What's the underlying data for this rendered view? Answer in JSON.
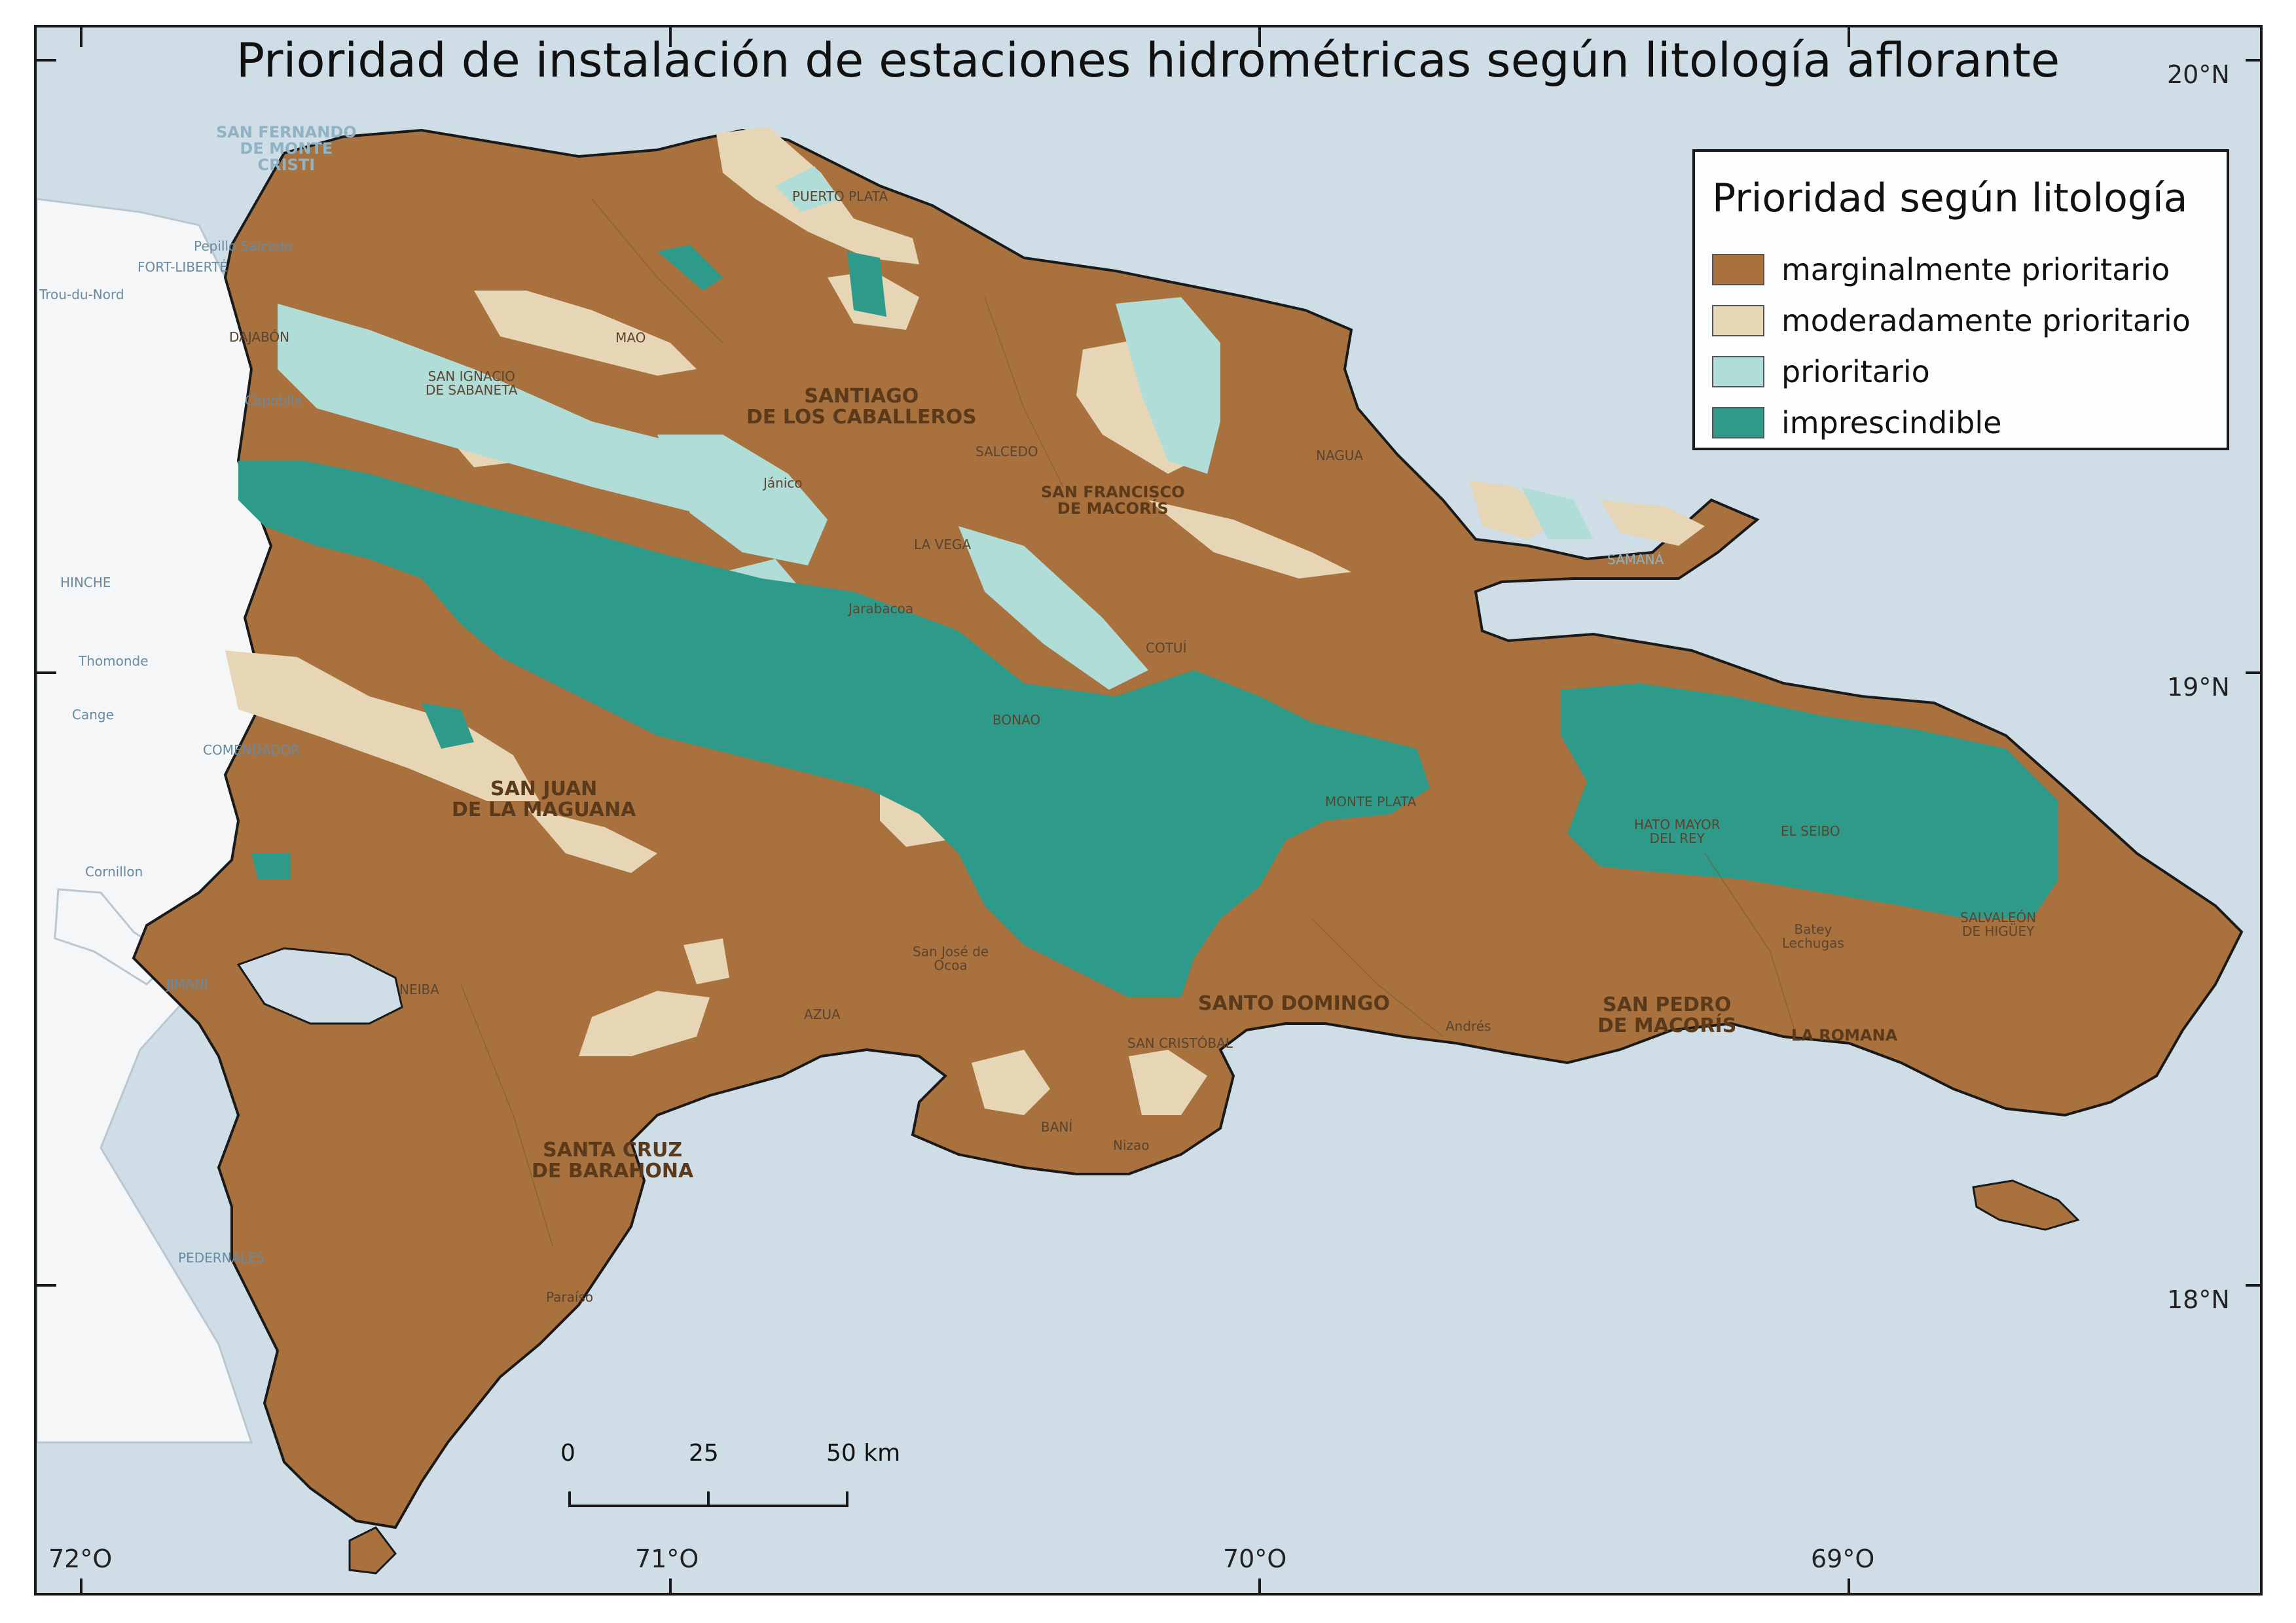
{
  "title": "Prioridad de instalación de estaciones hidrométricas según litología aflorante",
  "legend": {
    "title": "Prioridad según litología",
    "items": [
      {
        "label": "marginalmente prioritario",
        "color": "#a8713d"
      },
      {
        "label": "moderadamente prioritario",
        "color": "#e7d6b5"
      },
      {
        "label": "prioritario",
        "color": "#b1ddd8"
      },
      {
        "label": "imprescindible",
        "color": "#2e9a8a"
      }
    ]
  },
  "colors": {
    "sea": "#cfdee6",
    "haiti": "#f4f6f7",
    "frame": "#1a1a1a"
  },
  "coords": {
    "lat": [
      "20°N",
      "19°N",
      "18°N"
    ],
    "lon": [
      "72°O",
      "71°O",
      "70°O",
      "69°O"
    ]
  },
  "scale": {
    "ticks": [
      "0",
      "25",
      "50 km"
    ]
  },
  "places": {
    "montecristi": "SAN FERNANDO\nDE MONTE\nCRISTI",
    "puerto_plata": "PUERTO PLATA",
    "mao": "MAO",
    "dajabon": "DAJABÓN",
    "sabaneta": "SAN IGNACIO\nDE SABANETA",
    "santiago": "SANTIAGO\nDE LOS CABALLEROS",
    "salcedo": "SALCEDO",
    "sfm": "SAN FRANCISCO\nDE MACORÍS",
    "nagua": "NAGUA",
    "samana": "SAMANÁ",
    "janico": "Jánico",
    "la_vega": "LA VEGA",
    "jarabacoa": "Jarabacoa",
    "cotui": "COTUÍ",
    "bonao": "BONAO",
    "monte_plata": "MONTE PLATA",
    "hato_mayor": "HATO MAYOR\nDEL REY",
    "el_seibo": "EL SEIBO",
    "higuey": "SALVALEÓN\nDE HIGÜEY",
    "batey": "Batey\nLechugas",
    "comendador": "COMENDADOR",
    "san_juan": "SAN JUAN\nDE LA MAGUANA",
    "ocoa": "San José de\nOcoa",
    "santo_domingo": "SANTO DOMINGO",
    "spm": "SAN PEDRO\nDE MACORÍS",
    "la_romana": "LA ROMANA",
    "andres": "Andrés",
    "azua": "AZUA",
    "san_cristobal": "SAN CRISTÓBAL",
    "bani": "BANÍ",
    "nizao": "Nizao",
    "neiba": "NEIBA",
    "barahona": "SANTA CRUZ\nDE BARAHONA",
    "pedernales": "PEDERNALES",
    "paraiso": "Paraíso",
    "jimani": "JIMANÍ",
    "hinche": "HINCHE",
    "thomonde": "Thomonde",
    "cange": "Cange",
    "cornillon": "Cornillon",
    "fort_liberte": "FORT-LIBERTÉ",
    "pepillo": "Pepillo Salcedo",
    "capotille": "Capotille",
    "trou_du_nord": "Trou-du-Nord"
  }
}
